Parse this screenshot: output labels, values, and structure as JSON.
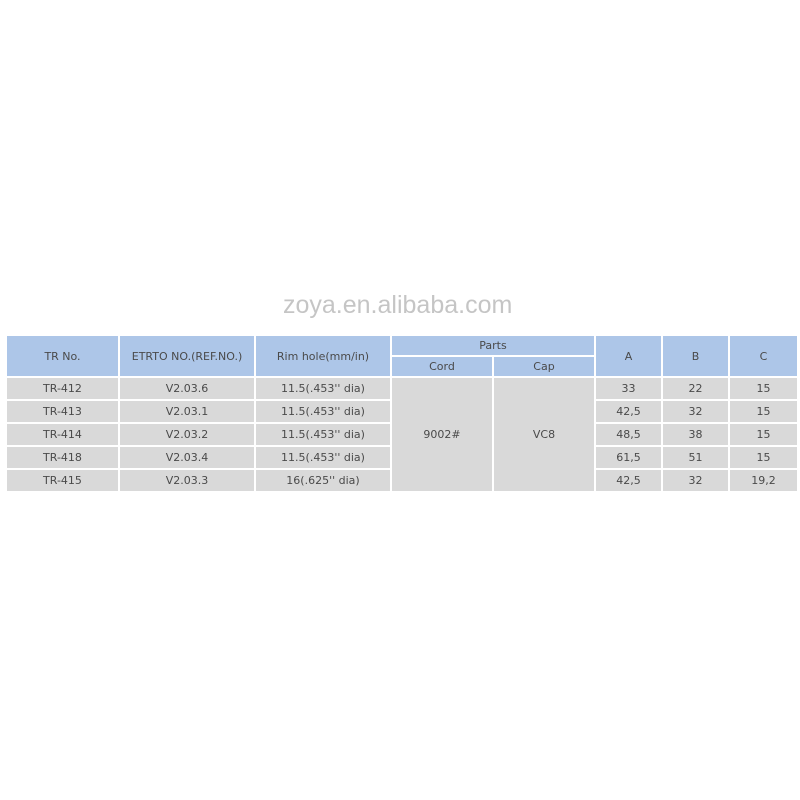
{
  "table": {
    "headers": {
      "tr_no": "TR No.",
      "etrto": "ETRTO NO.(REF.NO.)",
      "rim_hole": "Rim hole(mm/in)",
      "parts": "Parts",
      "cord": "Cord",
      "cap": "Cap",
      "a": "A",
      "b": "B",
      "c": "C"
    },
    "cord_value": "9002#",
    "cap_value": "VC8",
    "rows": [
      {
        "tr_no": "TR-412",
        "etrto": "V2.03.6",
        "rim_hole": "11.5(.453'' dia)",
        "a": "33",
        "b": "22",
        "c": "15"
      },
      {
        "tr_no": "TR-413",
        "etrto": "V2.03.1",
        "rim_hole": "11.5(.453'' dia)",
        "a": "42,5",
        "b": "32",
        "c": "15"
      },
      {
        "tr_no": "TR-414",
        "etrto": "V2.03.2",
        "rim_hole": "11.5(.453'' dia)",
        "a": "48,5",
        "b": "38",
        "c": "15"
      },
      {
        "tr_no": "TR-418",
        "etrto": "V2.03.4",
        "rim_hole": "11.5(.453'' dia)",
        "a": "61,5",
        "b": "51",
        "c": "15"
      },
      {
        "tr_no": "TR-415",
        "etrto": "V2.03.3",
        "rim_hole": "16(.625'' dia)",
        "a": "42,5",
        "b": "32",
        "c": "19,2"
      }
    ],
    "colors": {
      "header_bg": "#adc6e8",
      "cell_bg": "#d9d9d9",
      "text": "#4a4a4a"
    }
  },
  "watermark": "zoya.en.alibaba.com"
}
